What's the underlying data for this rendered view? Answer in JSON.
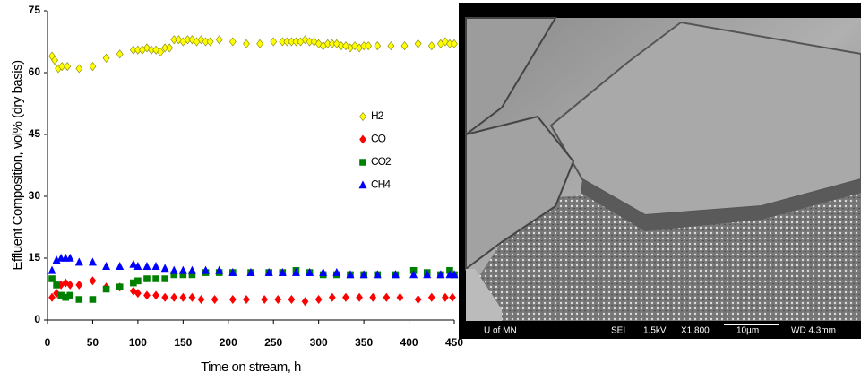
{
  "chart_data": {
    "type": "scatter",
    "xlabel": "Time on stream, h",
    "ylabel": "Effluent Composition, vol% (dry basis)",
    "xlim": [
      0,
      450
    ],
    "xticks": [
      0,
      50,
      100,
      150,
      200,
      250,
      300,
      350,
      400,
      450
    ],
    "ylim": [
      0,
      75
    ],
    "yticks": [
      0,
      15,
      30,
      45,
      60,
      75
    ],
    "legend": "right",
    "series": [
      {
        "name": "H2",
        "color": "#ffff00",
        "marker": "diamond",
        "x": [
          5,
          8,
          12,
          16,
          22,
          35,
          50,
          65,
          80,
          95,
          100,
          105,
          110,
          115,
          120,
          125,
          130,
          135,
          140,
          145,
          150,
          155,
          160,
          165,
          170,
          175,
          180,
          190,
          205,
          220,
          235,
          250,
          260,
          265,
          270,
          275,
          280,
          285,
          290,
          295,
          300,
          305,
          310,
          315,
          320,
          325,
          330,
          335,
          340,
          345,
          350,
          355,
          365,
          380,
          395,
          410,
          425,
          435,
          440,
          445,
          450
        ],
        "values": [
          64,
          63,
          61,
          61.5,
          61.5,
          61,
          61.5,
          63.5,
          64.5,
          65.5,
          65.5,
          65.5,
          66,
          65.5,
          65.5,
          65,
          66,
          66,
          68,
          68,
          67.5,
          68,
          68,
          67.5,
          68,
          67.5,
          67.5,
          68,
          67.5,
          67,
          67,
          67.5,
          67.5,
          67.5,
          67.5,
          67.5,
          67.5,
          68,
          67.5,
          67.5,
          67,
          66.5,
          67,
          67,
          67,
          66.5,
          66.5,
          66,
          66.5,
          66,
          66.5,
          66.5,
          66.5,
          66.5,
          66.5,
          67,
          66.5,
          67,
          67.5,
          67,
          67
        ]
      },
      {
        "name": "CO",
        "color": "#ff0000",
        "marker": "diamond",
        "x": [
          5,
          10,
          15,
          20,
          25,
          35,
          50,
          65,
          80,
          95,
          100,
          110,
          120,
          130,
          140,
          150,
          160,
          170,
          185,
          205,
          220,
          240,
          255,
          270,
          285,
          300,
          315,
          330,
          345,
          360,
          375,
          390,
          410,
          425,
          440,
          448
        ],
        "values": [
          5.5,
          6.5,
          8.5,
          9,
          8.5,
          8.5,
          9.5,
          8,
          8,
          7,
          6.5,
          6,
          6,
          5.5,
          5.5,
          5.5,
          5.5,
          5,
          5,
          5,
          5,
          5,
          5,
          5,
          4.5,
          5,
          5.5,
          5.5,
          5.5,
          5.5,
          5.5,
          5.5,
          5,
          5.5,
          5.5,
          5.5
        ]
      },
      {
        "name": "CO2",
        "color": "#008000",
        "marker": "square",
        "x": [
          5,
          10,
          15,
          20,
          25,
          35,
          50,
          65,
          80,
          95,
          100,
          110,
          120,
          130,
          140,
          150,
          160,
          175,
          190,
          205,
          225,
          245,
          260,
          275,
          290,
          305,
          320,
          335,
          350,
          365,
          385,
          405,
          420,
          435,
          445,
          450
        ],
        "values": [
          10,
          8.5,
          6,
          5.5,
          6,
          5,
          5,
          7.5,
          8,
          9,
          9.5,
          10,
          10,
          10,
          11,
          11,
          11,
          11.5,
          11.5,
          11.5,
          11.5,
          11.5,
          11.5,
          12,
          11.5,
          11,
          11,
          11,
          11,
          11,
          11,
          12,
          11.5,
          11,
          12,
          11
        ]
      },
      {
        "name": "CH4",
        "color": "#0000ff",
        "marker": "triangle",
        "x": [
          5,
          10,
          15,
          20,
          25,
          35,
          50,
          65,
          80,
          95,
          100,
          110,
          120,
          130,
          140,
          150,
          160,
          175,
          190,
          205,
          225,
          245,
          260,
          275,
          290,
          305,
          320,
          335,
          350,
          365,
          385,
          405,
          420,
          435,
          445,
          450
        ],
        "values": [
          12,
          14.5,
          15,
          15,
          15,
          14,
          14,
          13,
          13,
          13.5,
          13,
          13,
          13,
          12.5,
          12,
          12,
          12,
          12,
          12,
          11.5,
          11.5,
          11.5,
          11.5,
          11.5,
          11.5,
          11.5,
          11.5,
          11,
          11,
          11,
          11,
          11,
          11,
          11,
          11,
          11
        ]
      }
    ]
  },
  "image": {
    "labels": [
      "U of MN",
      "SEI",
      "1.5kV",
      "X1,800",
      "10µm",
      "WD 4.3mm"
    ]
  }
}
